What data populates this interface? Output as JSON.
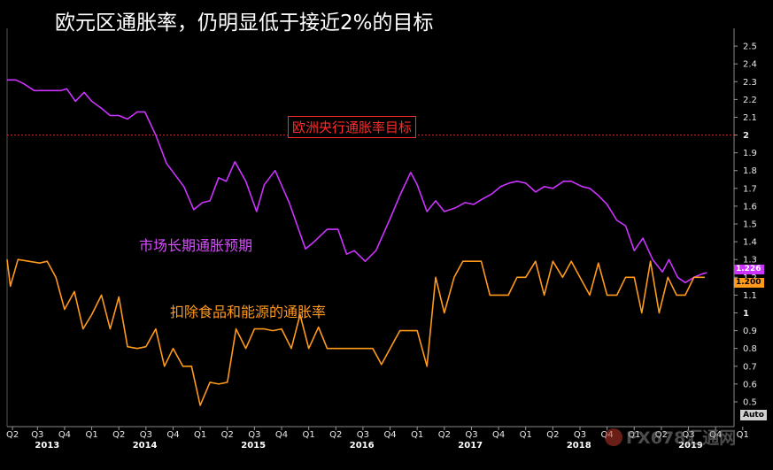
{
  "title": "欧元区通胀率，仍明显低于接近2%的目标",
  "chart_data": {
    "type": "line",
    "title": "欧元区通胀率，仍明显低于接近2%的目标",
    "ylim": [
      0.45,
      2.6
    ],
    "yticks": [
      0.5,
      0.6,
      0.7,
      0.8,
      0.9,
      1,
      1.1,
      1.2,
      1.3,
      1.4,
      1.5,
      1.6,
      1.7,
      1.8,
      1.9,
      2,
      2.1,
      2.2,
      2.3,
      2.4,
      2.5
    ],
    "ytick_labels": [
      "0.5",
      "0.6",
      "0.7",
      "0.8",
      "0.9",
      "1",
      "1.1",
      "1.2",
      "1.3",
      "1.4",
      "1.5",
      "1.6",
      "1.7",
      "1.8",
      "1.9",
      "2",
      "2.1",
      "2.2",
      "2.3",
      "2.4",
      "2.5"
    ],
    "xlim": [
      2013.25,
      2019.95
    ],
    "quarter_ticks": [
      {
        "x": 2013.3,
        "label": "Q2"
      },
      {
        "x": 2013.53,
        "label": "Q3"
      },
      {
        "x": 2013.78,
        "label": "Q4"
      },
      {
        "x": 2014.03,
        "label": "Q1"
      },
      {
        "x": 2014.28,
        "label": "Q2"
      },
      {
        "x": 2014.53,
        "label": "Q3"
      },
      {
        "x": 2014.78,
        "label": "Q4"
      },
      {
        "x": 2015.03,
        "label": "Q1"
      },
      {
        "x": 2015.28,
        "label": "Q2"
      },
      {
        "x": 2015.53,
        "label": "Q3"
      },
      {
        "x": 2015.78,
        "label": "Q4"
      },
      {
        "x": 2016.03,
        "label": "Q1"
      },
      {
        "x": 2016.28,
        "label": "Q2"
      },
      {
        "x": 2016.53,
        "label": "Q3"
      },
      {
        "x": 2016.78,
        "label": "Q4"
      },
      {
        "x": 2017.03,
        "label": "Q1"
      },
      {
        "x": 2017.28,
        "label": "Q2"
      },
      {
        "x": 2017.53,
        "label": "Q3"
      },
      {
        "x": 2017.78,
        "label": "Q4"
      },
      {
        "x": 2018.03,
        "label": "Q1"
      },
      {
        "x": 2018.28,
        "label": "Q2"
      },
      {
        "x": 2018.53,
        "label": "Q3"
      },
      {
        "x": 2018.78,
        "label": "Q4"
      },
      {
        "x": 2019.03,
        "label": "Q1"
      },
      {
        "x": 2019.28,
        "label": "Q2"
      },
      {
        "x": 2019.53,
        "label": "Q3"
      },
      {
        "x": 2019.78,
        "label": "Q4"
      },
      {
        "x": 2020.03,
        "label": "Q1"
      }
    ],
    "year_labels": [
      {
        "x": 2013.62,
        "label": "2013"
      },
      {
        "x": 2014.52,
        "label": "2014"
      },
      {
        "x": 2015.52,
        "label": "2015"
      },
      {
        "x": 2016.52,
        "label": "2016"
      },
      {
        "x": 2017.52,
        "label": "2017"
      },
      {
        "x": 2018.52,
        "label": "2018"
      },
      {
        "x": 2019.55,
        "label": "2019"
      }
    ],
    "grid": false,
    "reference_line": {
      "y": 2.0,
      "label": "欧洲央行通胀率目标",
      "color": "#d42020"
    },
    "series": [
      {
        "name": "市场长期通胀预期",
        "color": "#cc33ff",
        "last_value": "1.226",
        "points": [
          [
            2013.25,
            2.31
          ],
          [
            2013.33,
            2.31
          ],
          [
            2013.4,
            2.29
          ],
          [
            2013.5,
            2.25
          ],
          [
            2013.62,
            2.25
          ],
          [
            2013.75,
            2.25
          ],
          [
            2013.8,
            2.26
          ],
          [
            2013.88,
            2.19
          ],
          [
            2013.96,
            2.24
          ],
          [
            2014.03,
            2.19
          ],
          [
            2014.12,
            2.15
          ],
          [
            2014.2,
            2.11
          ],
          [
            2014.28,
            2.11
          ],
          [
            2014.36,
            2.09
          ],
          [
            2014.45,
            2.13
          ],
          [
            2014.52,
            2.13
          ],
          [
            2014.62,
            2.0
          ],
          [
            2014.72,
            1.84
          ],
          [
            2014.88,
            1.71
          ],
          [
            2014.97,
            1.58
          ],
          [
            2015.05,
            1.62
          ],
          [
            2015.12,
            1.63
          ],
          [
            2015.2,
            1.76
          ],
          [
            2015.27,
            1.74
          ],
          [
            2015.35,
            1.85
          ],
          [
            2015.45,
            1.74
          ],
          [
            2015.55,
            1.57
          ],
          [
            2015.62,
            1.72
          ],
          [
            2015.72,
            1.8
          ],
          [
            2015.85,
            1.62
          ],
          [
            2016.0,
            1.36
          ],
          [
            2016.08,
            1.4
          ],
          [
            2016.2,
            1.47
          ],
          [
            2016.3,
            1.47
          ],
          [
            2016.38,
            1.33
          ],
          [
            2016.45,
            1.35
          ],
          [
            2016.55,
            1.29
          ],
          [
            2016.65,
            1.35
          ],
          [
            2016.78,
            1.53
          ],
          [
            2016.87,
            1.66
          ],
          [
            2016.97,
            1.79
          ],
          [
            2017.03,
            1.72
          ],
          [
            2017.12,
            1.57
          ],
          [
            2017.2,
            1.63
          ],
          [
            2017.28,
            1.57
          ],
          [
            2017.38,
            1.59
          ],
          [
            2017.47,
            1.62
          ],
          [
            2017.55,
            1.61
          ],
          [
            2017.63,
            1.64
          ],
          [
            2017.72,
            1.67
          ],
          [
            2017.8,
            1.71
          ],
          [
            2017.88,
            1.73
          ],
          [
            2017.95,
            1.74
          ],
          [
            2018.03,
            1.73
          ],
          [
            2018.12,
            1.68
          ],
          [
            2018.2,
            1.71
          ],
          [
            2018.28,
            1.7
          ],
          [
            2018.38,
            1.74
          ],
          [
            2018.45,
            1.74
          ],
          [
            2018.55,
            1.71
          ],
          [
            2018.62,
            1.7
          ],
          [
            2018.7,
            1.66
          ],
          [
            2018.78,
            1.61
          ],
          [
            2018.87,
            1.52
          ],
          [
            2018.95,
            1.49
          ],
          [
            2019.03,
            1.35
          ],
          [
            2019.11,
            1.42
          ],
          [
            2019.2,
            1.3
          ],
          [
            2019.29,
            1.23
          ],
          [
            2019.35,
            1.3
          ],
          [
            2019.43,
            1.2
          ],
          [
            2019.5,
            1.17
          ],
          [
            2019.58,
            1.2
          ],
          [
            2019.66,
            1.22
          ],
          [
            2019.7,
            1.226
          ]
        ]
      },
      {
        "name": "扣除食品和能源的通胀率",
        "color": "#ff9a1a",
        "last_value": "1.200",
        "points": [
          [
            2013.25,
            1.3
          ],
          [
            2013.28,
            1.15
          ],
          [
            2013.35,
            1.3
          ],
          [
            2013.45,
            1.29
          ],
          [
            2013.55,
            1.28
          ],
          [
            2013.62,
            1.29
          ],
          [
            2013.7,
            1.2
          ],
          [
            2013.78,
            1.02
          ],
          [
            2013.87,
            1.12
          ],
          [
            2013.95,
            0.91
          ],
          [
            2014.03,
            0.99
          ],
          [
            2014.12,
            1.1
          ],
          [
            2014.2,
            0.91
          ],
          [
            2014.28,
            1.09
          ],
          [
            2014.36,
            0.81
          ],
          [
            2014.45,
            0.8
          ],
          [
            2014.53,
            0.81
          ],
          [
            2014.62,
            0.91
          ],
          [
            2014.7,
            0.7
          ],
          [
            2014.78,
            0.8
          ],
          [
            2014.87,
            0.7
          ],
          [
            2014.95,
            0.7
          ],
          [
            2015.03,
            0.48
          ],
          [
            2015.12,
            0.61
          ],
          [
            2015.2,
            0.6
          ],
          [
            2015.28,
            0.61
          ],
          [
            2015.36,
            0.91
          ],
          [
            2015.45,
            0.8
          ],
          [
            2015.53,
            0.91
          ],
          [
            2015.62,
            0.91
          ],
          [
            2015.7,
            0.9
          ],
          [
            2015.78,
            0.91
          ],
          [
            2015.87,
            0.8
          ],
          [
            2015.95,
            0.99
          ],
          [
            2016.03,
            0.8
          ],
          [
            2016.12,
            0.92
          ],
          [
            2016.2,
            0.8
          ],
          [
            2016.28,
            0.8
          ],
          [
            2016.37,
            0.8
          ],
          [
            2016.45,
            0.8
          ],
          [
            2016.53,
            0.8
          ],
          [
            2016.62,
            0.8
          ],
          [
            2016.7,
            0.71
          ],
          [
            2016.78,
            0.8
          ],
          [
            2016.87,
            0.9
          ],
          [
            2016.95,
            0.9
          ],
          [
            2017.03,
            0.9
          ],
          [
            2017.12,
            0.7
          ],
          [
            2017.2,
            1.2
          ],
          [
            2017.28,
            1.0
          ],
          [
            2017.37,
            1.2
          ],
          [
            2017.45,
            1.29
          ],
          [
            2017.53,
            1.29
          ],
          [
            2017.62,
            1.29
          ],
          [
            2017.7,
            1.1
          ],
          [
            2017.78,
            1.1
          ],
          [
            2017.87,
            1.1
          ],
          [
            2017.95,
            1.2
          ],
          [
            2018.03,
            1.2
          ],
          [
            2018.12,
            1.29
          ],
          [
            2018.2,
            1.1
          ],
          [
            2018.28,
            1.29
          ],
          [
            2018.37,
            1.2
          ],
          [
            2018.45,
            1.29
          ],
          [
            2018.53,
            1.2
          ],
          [
            2018.62,
            1.1
          ],
          [
            2018.7,
            1.28
          ],
          [
            2018.78,
            1.1
          ],
          [
            2018.87,
            1.1
          ],
          [
            2018.95,
            1.2
          ],
          [
            2019.03,
            1.2
          ],
          [
            2019.1,
            1.0
          ],
          [
            2019.18,
            1.29
          ],
          [
            2019.26,
            1.0
          ],
          [
            2019.34,
            1.2
          ],
          [
            2019.42,
            1.1
          ],
          [
            2019.5,
            1.1
          ],
          [
            2019.58,
            1.2
          ],
          [
            2019.68,
            1.2
          ]
        ]
      }
    ],
    "auto_label": "Auto",
    "watermark": "FX678汇通网"
  }
}
